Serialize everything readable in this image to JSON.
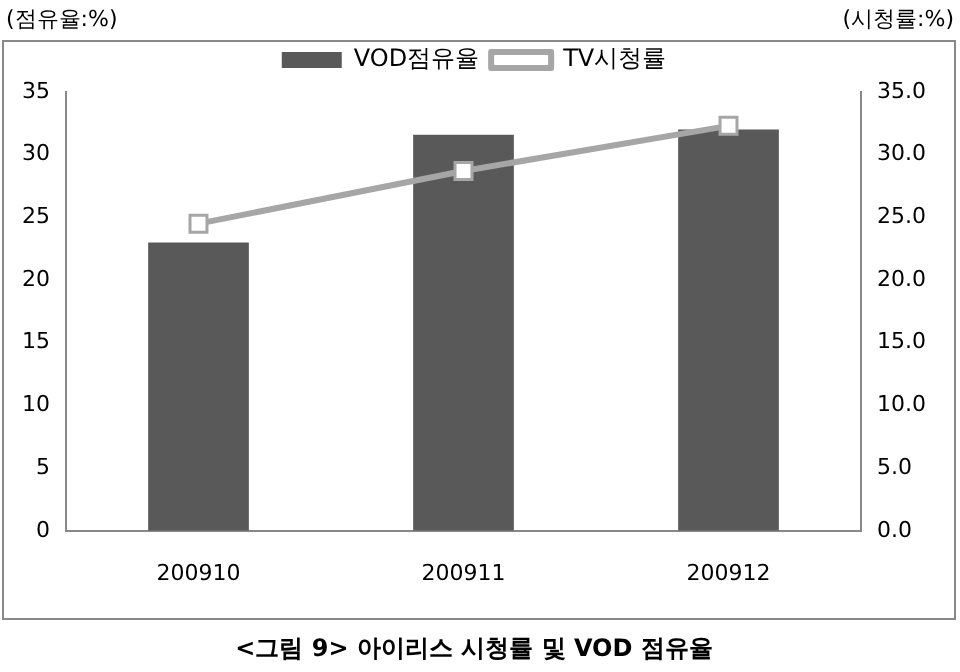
{
  "chart_data": {
    "type": "bar",
    "title": "<그림 9> 아이리스 시청률 및 VOD 점유율",
    "ylabel": "(점유율:%)",
    "y2label": "(시청률:%)",
    "categories": [
      "200910",
      "200911",
      "200912"
    ],
    "series": [
      {
        "name": "VOD점유율",
        "color": "#595959",
        "values": [
          23.0,
          31.6,
          32.0
        ]
      },
      {
        "name": "TV시청률",
        "type": "line",
        "axis": "y2",
        "color": "#a6a6a6",
        "marker": "square",
        "values": [
          24.5,
          28.7,
          32.3
        ]
      }
    ],
    "ylim": [
      0,
      35
    ],
    "yticks": [
      0,
      5,
      10,
      15,
      20,
      25,
      30,
      35
    ],
    "y2lim": [
      0,
      35
    ],
    "y2ticks": [
      {
        "value": 0,
        "label": "0.0"
      },
      {
        "value": 5,
        "label": "5.0"
      },
      {
        "value": 10,
        "label": "10.0"
      },
      {
        "value": 15,
        "label": "15.0"
      },
      {
        "value": 20,
        "label": "20.0"
      },
      {
        "value": 25,
        "label": "25.0"
      },
      {
        "value": 30,
        "label": "30.0"
      },
      {
        "value": 35,
        "label": "35.0"
      }
    ],
    "grid": false,
    "legend": "top"
  }
}
